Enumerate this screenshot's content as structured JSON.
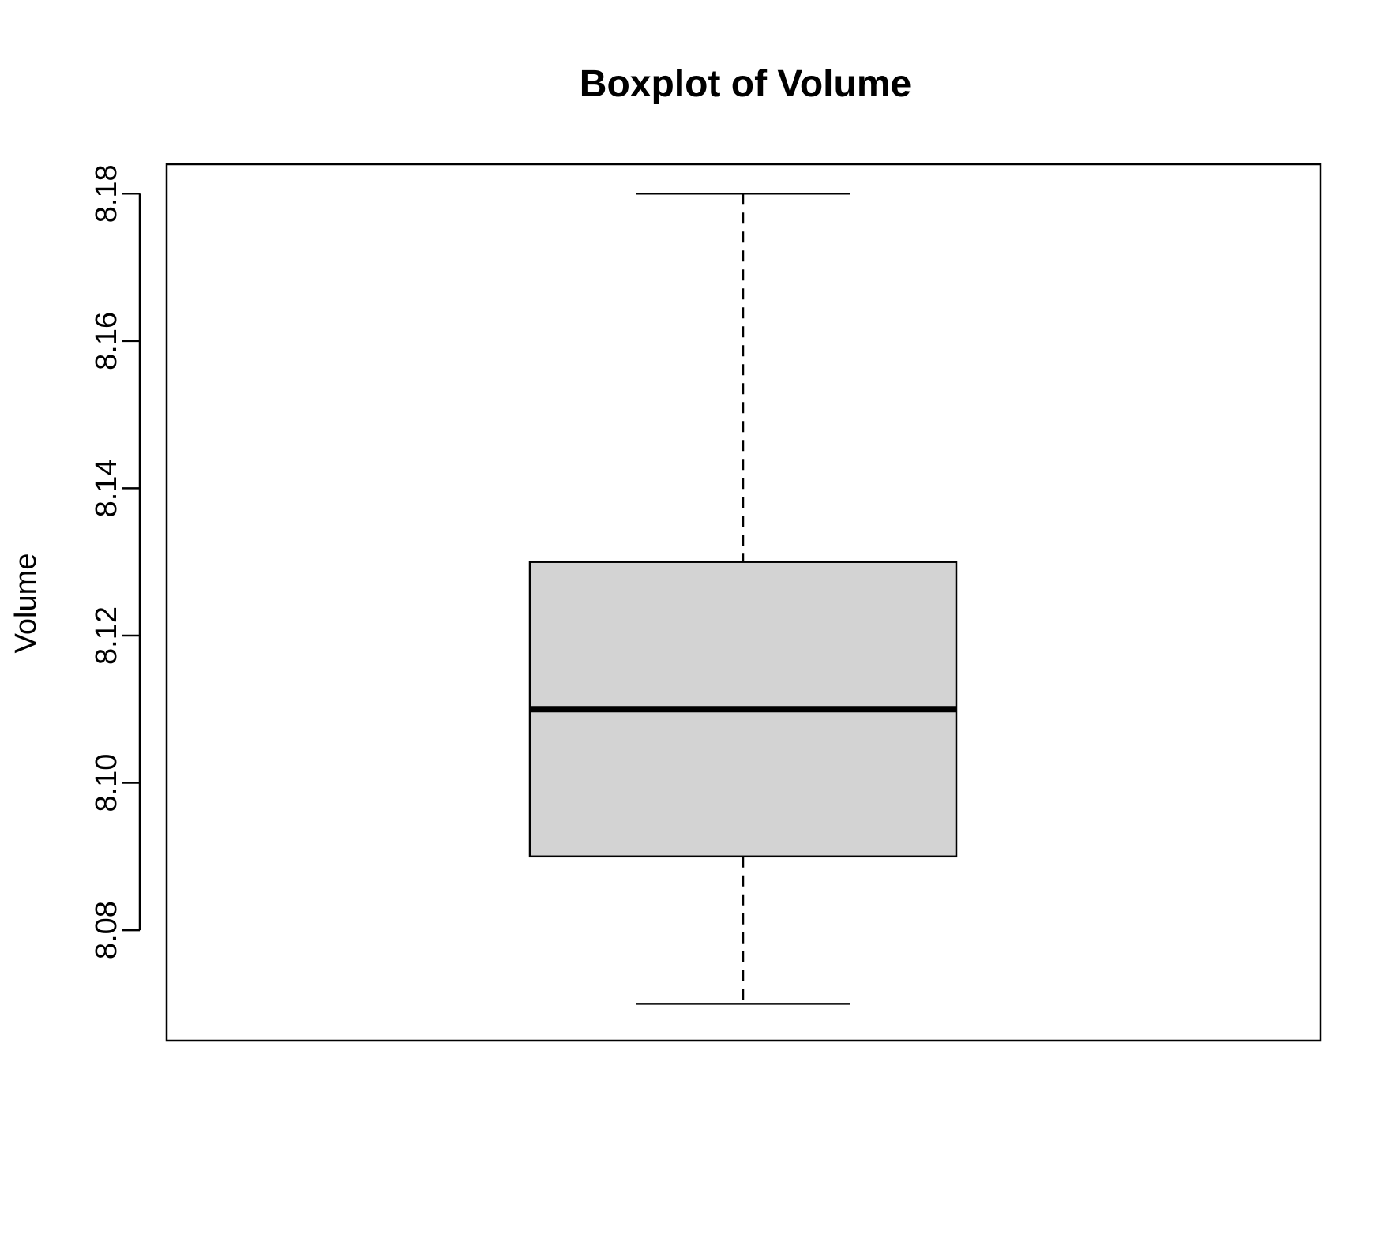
{
  "chart_data": {
    "type": "box",
    "title": "Boxplot of Volume",
    "xlabel": "",
    "ylabel": "Volume",
    "ylim": [
      8.065,
      8.184
    ],
    "yticks": [
      8.08,
      8.1,
      8.12,
      8.14,
      8.16,
      8.18
    ],
    "ytick_labels": [
      "8.08",
      "8.10",
      "8.12",
      "8.14",
      "8.16",
      "8.18"
    ],
    "grid": false,
    "box": {
      "whisker_low": 8.07,
      "q1": 8.09,
      "median": 8.11,
      "q3": 8.13,
      "whisker_high": 8.18
    },
    "colors": {
      "box_fill": "#d3d3d3",
      "stroke": "#000000"
    }
  }
}
